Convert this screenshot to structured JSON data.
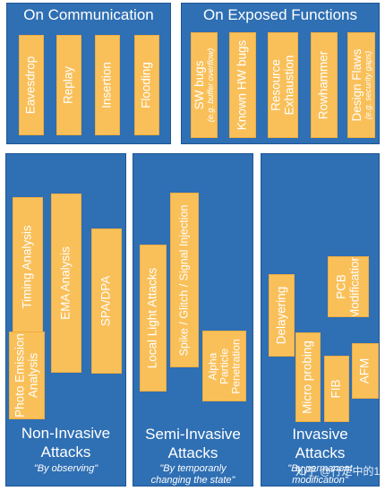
{
  "top_left": {
    "title": "On Communication",
    "items": [
      "Eavesdrop",
      "Replay",
      "Insertion",
      "Flooding"
    ]
  },
  "top_right": {
    "title": "On Exposed Functions",
    "items": [
      {
        "label": "SW bugs",
        "sub": "(e.g. buffer overflow)"
      },
      {
        "label": "Known HW bugs",
        "sub": ""
      },
      {
        "label": "Resource\nExhaustion",
        "sub": ""
      },
      {
        "label": "Rowhammer",
        "sub": ""
      },
      {
        "label": "Design Flaws",
        "sub": "(e.g. security gaps)"
      }
    ]
  },
  "non_invasive": {
    "items": [
      "Timing Analysis",
      "EMA Analysis",
      "SPA/DPA",
      "Photo Emission\nAnalysis"
    ],
    "title_line1": "Non-Invasive",
    "title_line2": "Attacks",
    "quote": "\"By observing\""
  },
  "semi_invasive": {
    "items": [
      "Local Light Attacks",
      "Spike / Glitch / Signal Injection",
      "Alpha\nParticle\nPenetration"
    ],
    "title_line1": "Semi-Invasive",
    "title_line2": "Attacks",
    "quote_line1": "\"By temporanly",
    "quote_line2": "changing the state\""
  },
  "invasive": {
    "items": [
      "Delayering",
      "Micro probing",
      "FIB",
      "PCB\nModification",
      "AFM"
    ],
    "title_line1": "Invasive",
    "title_line2": "Attacks",
    "quote_line1": "\"By permanent",
    "quote_line2": "modification\""
  },
  "watermark": "知乎 @行走中的190",
  "colors": {
    "panel": "#2f6fb3",
    "card": "#f9c05a",
    "text": "#ffffff"
  }
}
